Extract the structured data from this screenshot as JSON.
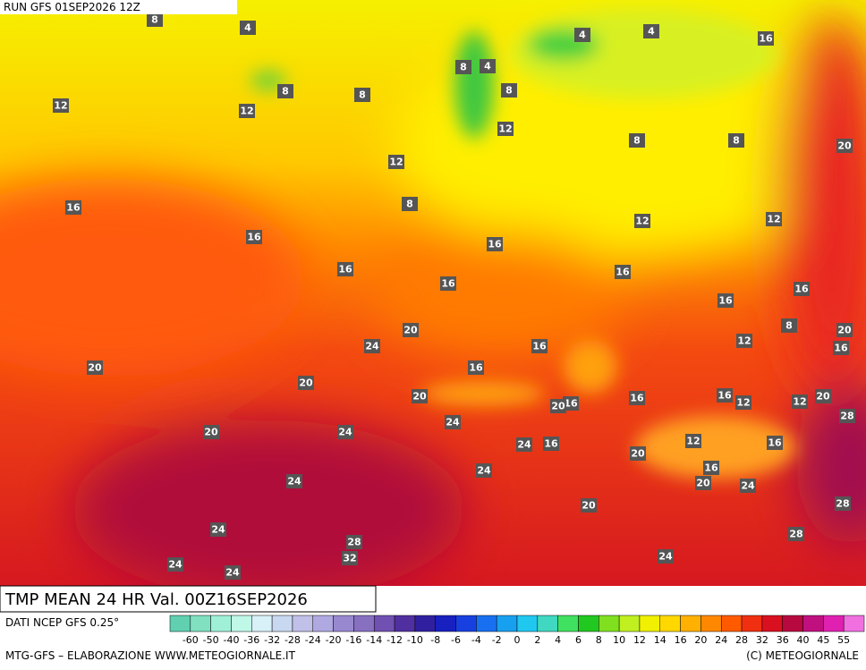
{
  "header": {
    "run": "RUN GFS 01SEP2026 12Z"
  },
  "map": {
    "labels": [
      8,
      4,
      4,
      4,
      16,
      8,
      4,
      8,
      8,
      8,
      12,
      12,
      12,
      8,
      8,
      20,
      12,
      8,
      16,
      12,
      12,
      16,
      16,
      16,
      16,
      16,
      16,
      16,
      8,
      20,
      20,
      12,
      16,
      24,
      16,
      20,
      16,
      20,
      20,
      16,
      16,
      12,
      12,
      20,
      16,
      20,
      28,
      24,
      20,
      24,
      24,
      16,
      12,
      16,
      20,
      24,
      16,
      24,
      20,
      24,
      20,
      28,
      24,
      28,
      28,
      32,
      24,
      24,
      24
    ]
  },
  "footer": {
    "title": "TMP MEAN 24 HR Val. 00Z16SEP2026",
    "source": "DATI NCEP GFS 0.25°",
    "credit": "MTG-GFS – ELABORAZIONE WWW.METEOGIORNALE.IT",
    "copyright": "(C) METEOGIORNALE"
  },
  "legend": {
    "labels": [
      -60,
      -50,
      -40,
      -36,
      -32,
      -28,
      -24,
      -20,
      -16,
      -14,
      -12,
      -10,
      -8,
      -6,
      -4,
      -2,
      0,
      2,
      4,
      6,
      8,
      10,
      12,
      14,
      16,
      20,
      24,
      28,
      32,
      36,
      40,
      45,
      55
    ]
  }
}
